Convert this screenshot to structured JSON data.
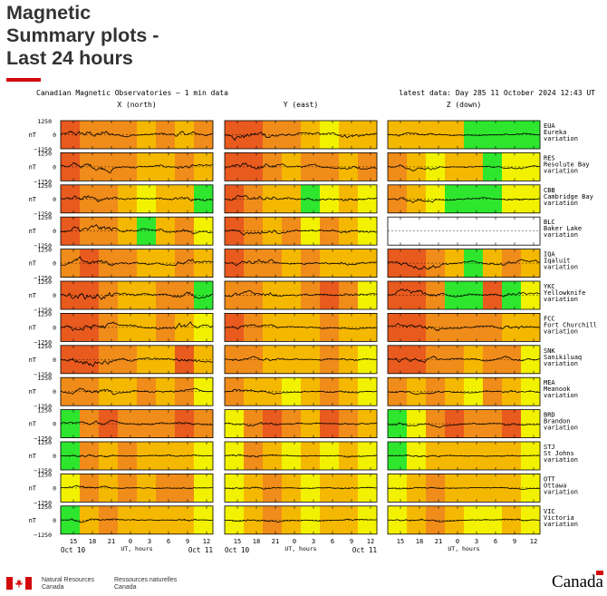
{
  "page": {
    "title_lines": [
      "Magnetic",
      "Summary plots -",
      "Last 24 hours"
    ]
  },
  "plot": {
    "header_left": "Canadian Magnetic Observatories  –  1 min data",
    "header_right": "latest data: Day 285    11 October 2024  12:43  UT",
    "unit": "nT",
    "y_ticks": [
      "1250",
      "0",
      "−1250"
    ],
    "x_ticks": [
      "15",
      "18",
      "21",
      "0",
      "3",
      "6",
      "9",
      "12"
    ],
    "x_label": "UT, hours",
    "date_start": "Oct 10",
    "date_end": "Oct 11",
    "components": [
      "X (north)",
      "Y (east)",
      "Z (down)"
    ],
    "variation_word": "variation"
  },
  "stations": [
    {
      "code": "EUA",
      "name": "Eureka"
    },
    {
      "code": "RES",
      "name": "Resolute Bay"
    },
    {
      "code": "CBB",
      "name": "Cambridge Bay"
    },
    {
      "code": "BLC",
      "name": "Baker Lake"
    },
    {
      "code": "IQA",
      "name": "Iqaluit"
    },
    {
      "code": "YKC",
      "name": "Yellowknife"
    },
    {
      "code": "FCC",
      "name": "Fort Churchill"
    },
    {
      "code": "SNK",
      "name": "Sanikiluaq"
    },
    {
      "code": "MEA",
      "name": "Meanook"
    },
    {
      "code": "BRD",
      "name": "Brandon"
    },
    {
      "code": "STJ",
      "name": "St Johns"
    },
    {
      "code": "OTT",
      "name": "Ottawa"
    },
    {
      "code": "VIC",
      "name": "Victoria"
    }
  ],
  "activity_colors": {
    "quiet": "#2ee62e",
    "unsettled": "#f2f200",
    "active": "#f5b800",
    "minor_storm": "#f08c1a",
    "major_storm": "#e85a1e"
  },
  "chart_data": {
    "type": "line",
    "title": "Canadian Magnetic Observatories – 1 min data",
    "xlabel": "UT, hours",
    "ylabel": "nT",
    "ylim": [
      -1250,
      1250
    ],
    "x_ticks_hours": [
      15,
      18,
      21,
      0,
      3,
      6,
      9,
      12
    ],
    "x_range": "Oct 10 13:00 UT – Oct 11 12:43 UT",
    "segment_hours": 3,
    "activity_levels_by_station": {
      "EUA": {
        "X": [
          "major_storm",
          "minor_storm",
          "minor_storm",
          "minor_storm",
          "active",
          "minor_storm",
          "active",
          "minor_storm"
        ],
        "Y": [
          "major_storm",
          "major_storm",
          "minor_storm",
          "minor_storm",
          "active",
          "unsettled",
          "active",
          "active"
        ],
        "Z": [
          "active",
          "active",
          "active",
          "active",
          "quiet",
          "quiet",
          "quiet",
          "quiet"
        ]
      },
      "RES": {
        "X": [
          "major_storm",
          "minor_storm",
          "minor_storm",
          "minor_storm",
          "active",
          "active",
          "minor_storm",
          "active"
        ],
        "Y": [
          "major_storm",
          "major_storm",
          "minor_storm",
          "active",
          "minor_storm",
          "minor_storm",
          "active",
          "minor_storm"
        ],
        "Z": [
          "minor_storm",
          "active",
          "unsettled",
          "active",
          "active",
          "quiet",
          "unsettled",
          "unsettled"
        ]
      },
      "CBB": {
        "X": [
          "major_storm",
          "minor_storm",
          "minor_storm",
          "active",
          "unsettled",
          "active",
          "active",
          "quiet"
        ],
        "Y": [
          "major_storm",
          "minor_storm",
          "active",
          "active",
          "quiet",
          "unsettled",
          "active",
          "unsettled"
        ],
        "Z": [
          "minor_storm",
          "active",
          "unsettled",
          "quiet",
          "quiet",
          "quiet",
          "unsettled",
          "unsettled"
        ]
      },
      "BLC": {
        "X": [
          "major_storm",
          "minor_storm",
          "minor_storm",
          "active",
          "quiet",
          "active",
          "minor_storm",
          "unsettled"
        ],
        "Y": [
          "major_storm",
          "minor_storm",
          "active",
          "minor_storm",
          "unsettled",
          "minor_storm",
          "active",
          "unsettled"
        ]
      },
      "IQA": {
        "X": [
          "minor_storm",
          "major_storm",
          "minor_storm",
          "minor_storm",
          "active",
          "active",
          "minor_storm",
          "active"
        ],
        "Y": [
          "major_storm",
          "minor_storm",
          "minor_storm",
          "active",
          "minor_storm",
          "active",
          "active",
          "active"
        ],
        "Z": [
          "major_storm",
          "major_storm",
          "minor_storm",
          "active",
          "quiet",
          "active",
          "minor_storm",
          "active"
        ]
      },
      "YKC": {
        "X": [
          "major_storm",
          "major_storm",
          "minor_storm",
          "active",
          "active",
          "minor_storm",
          "minor_storm",
          "quiet"
        ],
        "Y": [
          "minor_storm",
          "minor_storm",
          "active",
          "active",
          "minor_storm",
          "major_storm",
          "minor_storm",
          "unsettled"
        ],
        "Z": [
          "major_storm",
          "major_storm",
          "minor_storm",
          "quiet",
          "quiet",
          "major_storm",
          "quiet",
          "unsettled"
        ]
      },
      "FCC": {
        "X": [
          "major_storm",
          "major_storm",
          "minor_storm",
          "active",
          "active",
          "minor_storm",
          "active",
          "unsettled"
        ],
        "Y": [
          "major_storm",
          "minor_storm",
          "active",
          "active",
          "active",
          "minor_storm",
          "active",
          "active"
        ],
        "Z": [
          "major_storm",
          "major_storm",
          "minor_storm",
          "minor_storm",
          "minor_storm",
          "minor_storm",
          "active",
          "active"
        ]
      },
      "SNK": {
        "X": [
          "major_storm",
          "major_storm",
          "minor_storm",
          "minor_storm",
          "active",
          "active",
          "major_storm",
          "active"
        ],
        "Y": [
          "minor_storm",
          "minor_storm",
          "active",
          "active",
          "active",
          "minor_storm",
          "active",
          "unsettled"
        ],
        "Z": [
          "major_storm",
          "major_storm",
          "minor_storm",
          "minor_storm",
          "active",
          "minor_storm",
          "minor_storm",
          "unsettled"
        ]
      },
      "MEA": {
        "X": [
          "minor_storm",
          "minor_storm",
          "active",
          "active",
          "minor_storm",
          "active",
          "minor_storm",
          "unsettled"
        ],
        "Y": [
          "minor_storm",
          "active",
          "active",
          "unsettled",
          "active",
          "minor_storm",
          "active",
          "unsettled"
        ],
        "Z": [
          "minor_storm",
          "active",
          "minor_storm",
          "active",
          "unsettled",
          "minor_storm",
          "active",
          "unsettled"
        ]
      },
      "BRD": {
        "X": [
          "quiet",
          "minor_storm",
          "major_storm",
          "minor_storm",
          "minor_storm",
          "minor_storm",
          "major_storm",
          "minor_storm"
        ],
        "Y": [
          "unsettled",
          "minor_storm",
          "major_storm",
          "minor_storm",
          "active",
          "major_storm",
          "minor_storm",
          "active"
        ],
        "Z": [
          "quiet",
          "unsettled",
          "minor_storm",
          "major_storm",
          "minor_storm",
          "minor_storm",
          "major_storm",
          "unsettled"
        ]
      },
      "STJ": {
        "X": [
          "quiet",
          "minor_storm",
          "active",
          "minor_storm",
          "active",
          "active",
          "active",
          "unsettled"
        ],
        "Y": [
          "unsettled",
          "minor_storm",
          "active",
          "unsettled",
          "active",
          "unsettled",
          "active",
          "unsettled"
        ],
        "Z": [
          "quiet",
          "unsettled",
          "active",
          "active",
          "active",
          "active",
          "active",
          "unsettled"
        ]
      },
      "OTT": {
        "X": [
          "unsettled",
          "minor_storm",
          "active",
          "minor_storm",
          "active",
          "minor_storm",
          "minor_storm",
          "unsettled"
        ],
        "Y": [
          "unsettled",
          "active",
          "minor_storm",
          "active",
          "unsettled",
          "active",
          "active",
          "unsettled"
        ],
        "Z": [
          "unsettled",
          "active",
          "minor_storm",
          "active",
          "active",
          "active",
          "active",
          "unsettled"
        ]
      },
      "VIC": {
        "X": [
          "quiet",
          "active",
          "minor_storm",
          "active",
          "active",
          "active",
          "active",
          "unsettled"
        ],
        "Y": [
          "unsettled",
          "active",
          "minor_storm",
          "active",
          "unsettled",
          "active",
          "active",
          "unsettled"
        ],
        "Z": [
          "unsettled",
          "active",
          "minor_storm",
          "active",
          "unsettled",
          "unsettled",
          "active",
          "unsettled"
        ]
      }
    },
    "missing": [
      {
        "station": "BLC",
        "component": "Z"
      }
    ],
    "trace_amplitude_nT": {
      "EUA": [
        1400,
        1500,
        450
      ],
      "RES": [
        1250,
        1300,
        700
      ],
      "CBB": [
        1200,
        1100,
        750
      ],
      "BLC": [
        1500,
        1000,
        0
      ],
      "IQA": [
        1300,
        1000,
        1300
      ],
      "YKC": [
        1600,
        1000,
        1200
      ],
      "FCC": [
        1600,
        800,
        1100
      ],
      "SNK": [
        1400,
        700,
        1000
      ],
      "MEA": [
        1100,
        700,
        600
      ],
      "BRD": [
        800,
        600,
        700
      ],
      "STJ": [
        500,
        450,
        400
      ],
      "OTT": [
        500,
        400,
        350
      ],
      "VIC": [
        550,
        450,
        400
      ]
    }
  },
  "footer": {
    "dept_en": "Natural Resources\nCanada",
    "dept_fr": "Ressources naturelles\nCanada",
    "wordmark": "Canada"
  }
}
